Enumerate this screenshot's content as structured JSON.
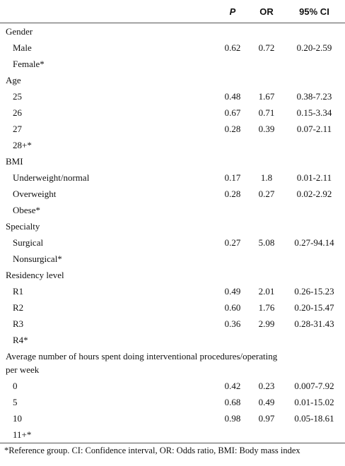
{
  "table": {
    "header": {
      "p": "P",
      "or": "OR",
      "ci": "95% CI"
    },
    "groups": [
      {
        "title": "Gender",
        "items": [
          {
            "label": "Male",
            "p": "0.62",
            "or": "0.72",
            "ci": "0.20-2.59"
          },
          {
            "label": "Female*"
          }
        ]
      },
      {
        "title": "Age",
        "items": [
          {
            "label": "25",
            "p": "0.48",
            "or": "1.67",
            "ci": "0.38-7.23"
          },
          {
            "label": "26",
            "p": "0.67",
            "or": "0.71",
            "ci": "0.15-3.34"
          },
          {
            "label": "27",
            "p": "0.28",
            "or": "0.39",
            "ci": "0.07-2.11"
          },
          {
            "label": "28+*"
          }
        ]
      },
      {
        "title": "BMI",
        "items": [
          {
            "label": "Underweight/normal",
            "p": "0.17",
            "or": "1.8",
            "ci": "0.01-2.11"
          },
          {
            "label": "Overweight",
            "p": "0.28",
            "or": "0.27",
            "ci": "0.02-2.92"
          },
          {
            "label": "Obese*"
          }
        ]
      },
      {
        "title": "Specialty",
        "items": [
          {
            "label": "Surgical",
            "p": "0.27",
            "or": "5.08",
            "ci": "0.27-94.14"
          },
          {
            "label": "Nonsurgical*"
          }
        ]
      },
      {
        "title": "Residency level",
        "items": [
          {
            "label": "R1",
            "p": "0.49",
            "or": "2.01",
            "ci": "0.26-15.23"
          },
          {
            "label": "R2",
            "p": "0.60",
            "or": "1.76",
            "ci": "0.20-15.47"
          },
          {
            "label": "R3",
            "p": "0.36",
            "or": "2.99",
            "ci": "0.28-31.43"
          },
          {
            "label": "R4*"
          }
        ]
      },
      {
        "title": "Average number of hours spent doing interventional procedures/operating per week",
        "items": [
          {
            "label": "0",
            "p": "0.42",
            "or": "0.23",
            "ci": "0.007-7.92"
          },
          {
            "label": "5",
            "p": "0.68",
            "or": "0.49",
            "ci": "0.01-15.02"
          },
          {
            "label": "10",
            "p": "0.98",
            "or": "0.97",
            "ci": "0.05-18.61"
          },
          {
            "label": "11+*"
          }
        ]
      }
    ]
  },
  "footnote": "*Reference group. CI: Confidence interval, OR: Odds ratio, BMI: Body mass index"
}
